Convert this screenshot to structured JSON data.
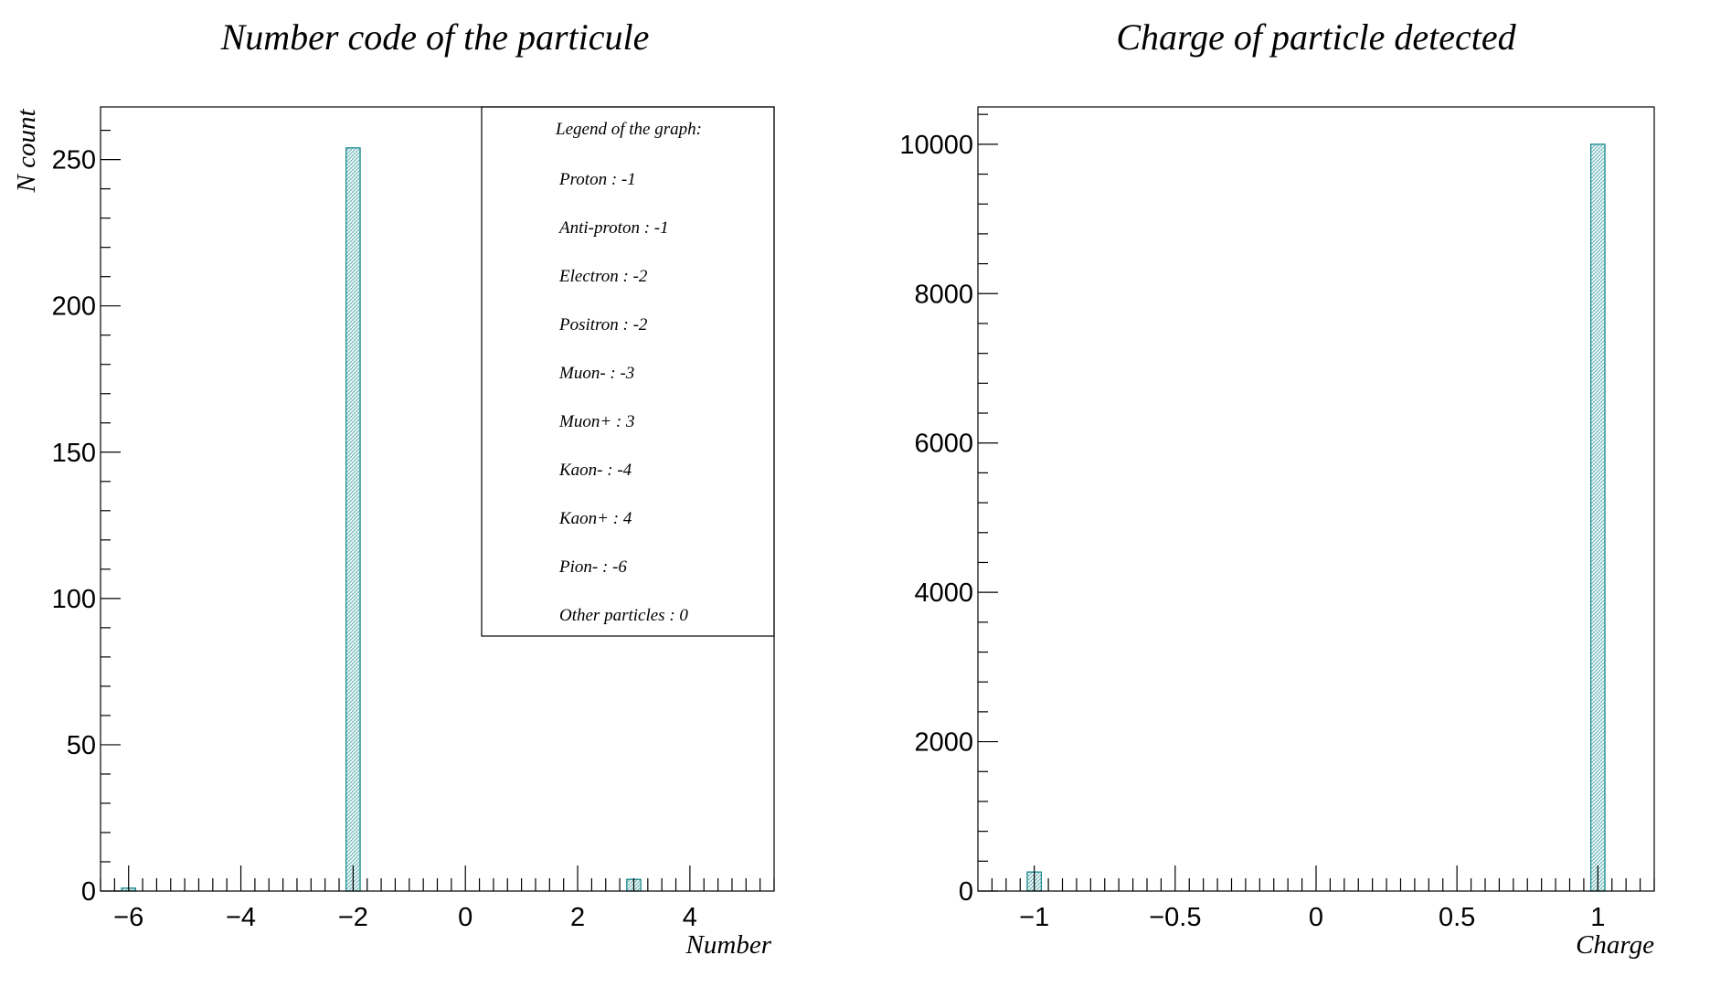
{
  "colors": {
    "bar_stroke": "#1a8a8f",
    "bar_hatch": "#5fb0b3",
    "axis": "#000000",
    "background": "#ffffff"
  },
  "chart_data": [
    {
      "type": "bar",
      "title": "Number code of the particule",
      "xlabel": "Number",
      "ylabel": "N count",
      "xlim": [
        -6.5,
        5.5
      ],
      "ylim": [
        0,
        268
      ],
      "bin_width": 0.25,
      "xticks": [
        -6,
        -4,
        -2,
        0,
        2,
        4
      ],
      "xtick_labels": [
        "−6",
        "−4",
        "−2",
        "0",
        "2",
        "4"
      ],
      "yticks": [
        0,
        50,
        100,
        150,
        200,
        250
      ],
      "ytick_labels": [
        "0",
        "50",
        "100",
        "150",
        "200",
        "250"
      ],
      "bins": [
        {
          "x": -6,
          "value": 1
        },
        {
          "x": -2,
          "value": 254
        },
        {
          "x": 3,
          "value": 4
        }
      ],
      "legend_box": {
        "title": "Legend of the graph:",
        "entries": [
          "Proton : -1",
          "Anti-proton : -1",
          "Electron : -2",
          "Positron : -2",
          "Muon- : -3",
          "Muon+ : 3",
          "Kaon- : -4",
          "Kaon+ : 4",
          "Pion- : -6",
          "Other particles : 0"
        ],
        "placement": "top-right"
      },
      "grid": false
    },
    {
      "type": "bar",
      "title": "Charge of particle detected",
      "xlabel": "Charge",
      "ylabel": "",
      "xlim": [
        -1.2,
        1.2
      ],
      "ylim": [
        0,
        10500
      ],
      "bin_width": 0.05,
      "xticks": [
        -1,
        -0.5,
        0,
        0.5,
        1
      ],
      "xtick_labels": [
        "−1",
        "−0.5",
        "0",
        "0.5",
        "1"
      ],
      "yticks": [
        0,
        2000,
        4000,
        6000,
        8000,
        10000
      ],
      "ytick_labels": [
        "0",
        "2000",
        "4000",
        "6000",
        "8000",
        "10000"
      ],
      "bins": [
        {
          "x": -1,
          "value": 255
        },
        {
          "x": 1,
          "value": 10000
        }
      ],
      "grid": false
    }
  ]
}
